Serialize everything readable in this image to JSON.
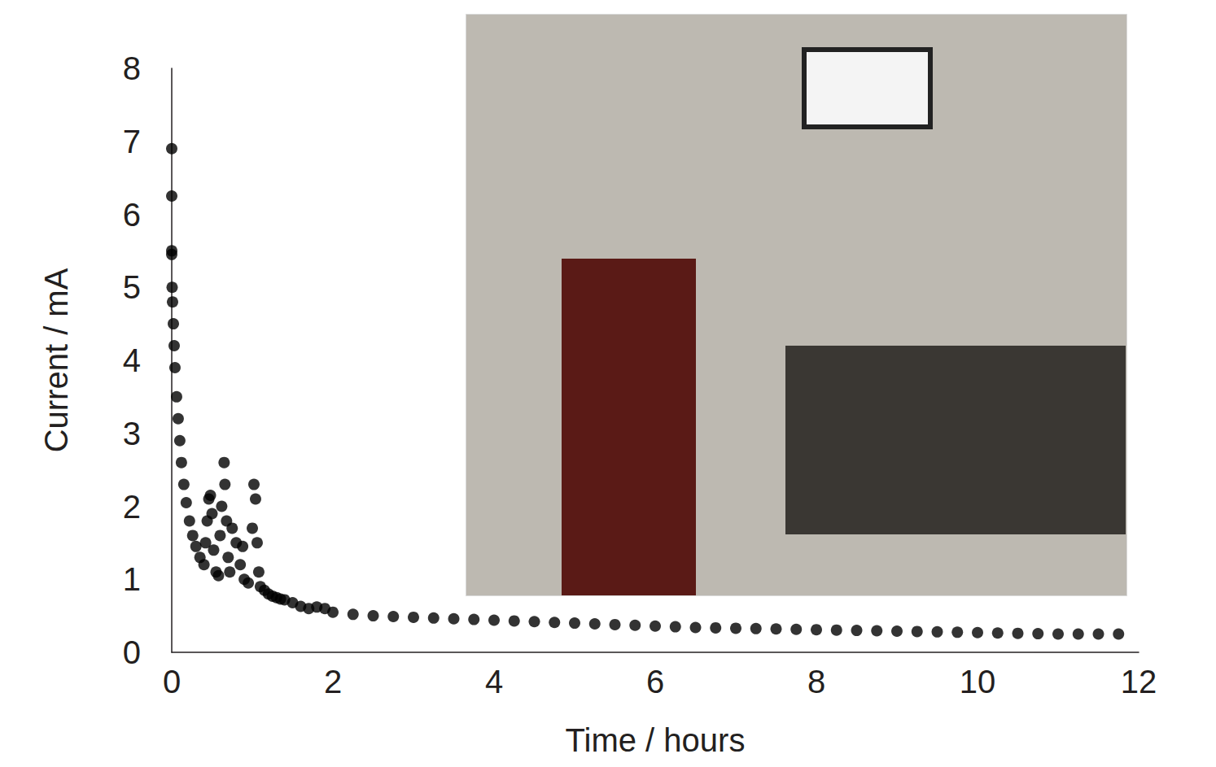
{
  "chart_data": {
    "type": "scatter",
    "xlabel": "Time / hours",
    "ylabel": "Current / mA",
    "x": [
      0,
      0,
      0,
      0,
      0.005,
      0.01,
      0.02,
      0.03,
      0.04,
      0.06,
      0.08,
      0.1,
      0.12,
      0.15,
      0.18,
      0.22,
      0.26,
      0.3,
      0.35,
      0.4,
      0.42,
      0.44,
      0.46,
      0.48,
      0.5,
      0.52,
      0.55,
      0.58,
      0.6,
      0.62,
      0.65,
      0.66,
      0.68,
      0.7,
      0.72,
      0.75,
      0.8,
      0.85,
      0.88,
      0.9,
      0.95,
      1.0,
      1.02,
      1.04,
      1.06,
      1.08,
      1.1,
      1.15,
      1.2,
      1.25,
      1.3,
      1.35,
      1.4,
      1.5,
      1.6,
      1.7,
      1.8,
      1.9,
      2.0,
      2.25,
      2.5,
      2.75,
      3.0,
      3.25,
      3.5,
      3.75,
      4.0,
      4.25,
      4.5,
      4.75,
      5.0,
      5.25,
      5.5,
      5.75,
      6.0,
      6.25,
      6.5,
      6.75,
      7.0,
      7.25,
      7.5,
      7.75,
      8.0,
      8.25,
      8.5,
      8.75,
      9.0,
      9.25,
      9.5,
      9.75,
      10.0,
      10.25,
      10.5,
      10.75,
      11.0,
      11.25,
      11.5,
      11.75
    ],
    "values": [
      6.9,
      6.25,
      5.5,
      5.45,
      5.0,
      4.8,
      4.5,
      4.2,
      3.9,
      3.5,
      3.2,
      2.9,
      2.6,
      2.3,
      2.05,
      1.8,
      1.6,
      1.45,
      1.3,
      1.2,
      1.5,
      1.8,
      2.1,
      2.15,
      1.9,
      1.4,
      1.1,
      1.05,
      1.6,
      2.0,
      2.6,
      2.3,
      1.8,
      1.3,
      1.1,
      1.7,
      1.5,
      1.2,
      1.45,
      1.0,
      0.95,
      1.7,
      2.3,
      2.1,
      1.5,
      1.1,
      0.9,
      0.85,
      0.8,
      0.77,
      0.75,
      0.73,
      0.72,
      0.68,
      0.63,
      0.6,
      0.62,
      0.6,
      0.55,
      0.52,
      0.5,
      0.49,
      0.48,
      0.47,
      0.46,
      0.45,
      0.44,
      0.43,
      0.42,
      0.41,
      0.4,
      0.39,
      0.38,
      0.37,
      0.36,
      0.35,
      0.34,
      0.335,
      0.33,
      0.325,
      0.32,
      0.315,
      0.31,
      0.305,
      0.3,
      0.295,
      0.29,
      0.285,
      0.28,
      0.275,
      0.27,
      0.265,
      0.26,
      0.255,
      0.25,
      0.25,
      0.25,
      0.25
    ],
    "color": "#000000",
    "marker": "circle",
    "xlim": [
      0,
      12
    ],
    "xticks": [
      0,
      2,
      4,
      6,
      8,
      10,
      12
    ],
    "ylim": [
      0,
      8
    ],
    "yticks": [
      0,
      1,
      2,
      3,
      4,
      5,
      6,
      7,
      8
    ],
    "grid": false
  }
}
